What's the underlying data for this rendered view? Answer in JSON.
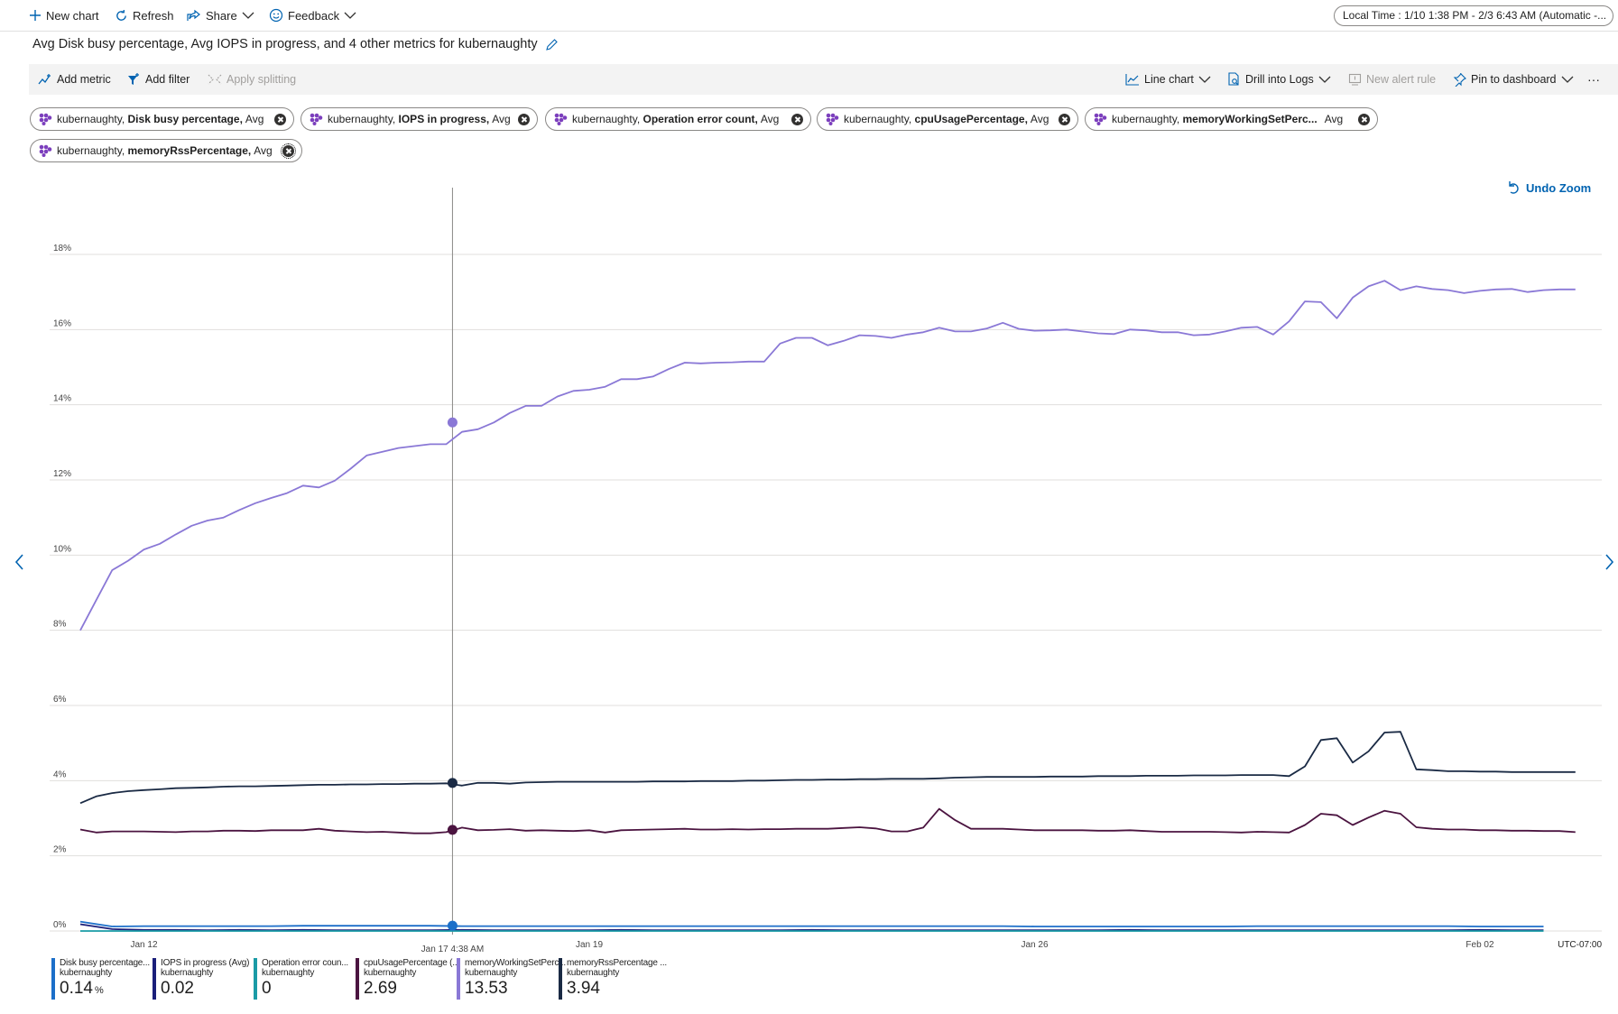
{
  "toolbar": {
    "new_chart": "New chart",
    "refresh": "Refresh",
    "share": "Share",
    "feedback": "Feedback",
    "time_range": "Local Time : 1/10 1:38 PM - 2/3 6:43 AM (Automatic -..."
  },
  "chart_title": "Avg Disk busy percentage, Avg IOPS in progress, and 4 other metrics for kubernaughty",
  "commands": {
    "add_metric": "Add metric",
    "add_filter": "Add filter",
    "apply_splitting": "Apply splitting",
    "line_chart": "Line chart",
    "drill_into_logs": "Drill into Logs",
    "new_alert_rule": "New alert rule",
    "pin_to_dashboard": "Pin to dashboard",
    "more": "···"
  },
  "metric_pills": [
    {
      "resource": "kubernaughty,",
      "metric": "Disk busy percentage,",
      "agg": "Avg"
    },
    {
      "resource": "kubernaughty,",
      "metric": "IOPS in progress,",
      "agg": "Avg"
    },
    {
      "resource": "kubernaughty,",
      "metric": "Operation error count,",
      "agg": "Avg"
    },
    {
      "resource": "kubernaughty,",
      "metric": "cpuUsagePercentage,",
      "agg": "Avg"
    },
    {
      "resource": "kubernaughty,",
      "metric": "memoryWorkingSetPerc...",
      "agg": "Avg"
    },
    {
      "resource": "kubernaughty,",
      "metric": "memoryRssPercentage,",
      "agg": "Avg"
    }
  ],
  "undo_zoom": "Undo Zoom",
  "chart_data": {
    "type": "line",
    "ylim": [
      0,
      18
    ],
    "yticks": [
      0,
      2,
      4,
      6,
      8,
      10,
      12,
      14,
      16,
      18
    ],
    "ytick_labels": [
      "0%",
      "2%",
      "4%",
      "6%",
      "8%",
      "10%",
      "12%",
      "14%",
      "16%",
      "18%"
    ],
    "x_range_days": [
      11,
      34.2
    ],
    "xticks": [
      {
        "day": 12,
        "label": "Jan 12"
      },
      {
        "day": 19,
        "label": "Jan 19"
      },
      {
        "day": 26,
        "label": "Jan 26"
      },
      {
        "day": 33,
        "label": "Feb 02"
      }
    ],
    "timezone_label": "UTC-07:00",
    "cursor": {
      "day": 16.85,
      "label": "Jan 17 4:38 AM"
    },
    "grid": true,
    "series": [
      {
        "name": "memoryWorkingSetPercentage (Avg)",
        "color": "#8a78d6",
        "start_day": 11.0,
        "step_days": 0.25,
        "values": [
          8.0,
          8.8,
          9.6,
          9.85,
          10.15,
          10.3,
          10.55,
          10.78,
          10.92,
          11.0,
          11.2,
          11.38,
          11.52,
          11.65,
          11.85,
          11.8,
          11.98,
          12.3,
          12.65,
          12.75,
          12.85,
          12.9,
          12.95,
          12.95,
          13.28,
          13.35,
          13.53,
          13.78,
          13.97,
          13.97,
          14.22,
          14.37,
          14.4,
          14.48,
          14.68,
          14.68,
          14.75,
          14.95,
          15.12,
          15.1,
          15.12,
          15.13,
          15.15,
          15.15,
          15.63,
          15.78,
          15.78,
          15.58,
          15.7,
          15.85,
          15.83,
          15.78,
          15.87,
          15.93,
          16.05,
          15.95,
          15.95,
          16.03,
          16.18,
          16.02,
          15.97,
          15.98,
          16.0,
          15.95,
          15.9,
          15.88,
          16.0,
          15.98,
          15.93,
          15.93,
          15.85,
          15.87,
          15.95,
          16.05,
          16.07,
          15.87,
          16.22,
          16.75,
          16.73,
          16.3,
          16.85,
          17.15,
          17.3,
          17.05,
          17.15,
          17.08,
          17.05,
          16.97,
          17.03,
          17.07,
          17.08,
          17.0,
          17.05,
          17.07,
          17.07
        ]
      },
      {
        "name": "memoryRssPercentage (Avg)",
        "color": "#1a2a44",
        "start_day": 11.0,
        "step_days": 0.25,
        "values": [
          3.4,
          3.58,
          3.67,
          3.72,
          3.75,
          3.77,
          3.8,
          3.81,
          3.82,
          3.84,
          3.85,
          3.85,
          3.86,
          3.87,
          3.88,
          3.89,
          3.89,
          3.9,
          3.9,
          3.91,
          3.91,
          3.92,
          3.92,
          3.93,
          3.87,
          3.94,
          3.94,
          3.92,
          3.95,
          3.96,
          3.97,
          3.97,
          3.97,
          3.97,
          3.97,
          3.97,
          3.98,
          3.98,
          3.98,
          3.99,
          3.99,
          3.99,
          4.0,
          4.0,
          4.01,
          4.02,
          4.02,
          4.03,
          4.03,
          4.04,
          4.04,
          4.05,
          4.05,
          4.05,
          4.06,
          4.08,
          4.09,
          4.1,
          4.1,
          4.1,
          4.1,
          4.11,
          4.11,
          4.11,
          4.12,
          4.12,
          4.12,
          4.13,
          4.13,
          4.13,
          4.14,
          4.14,
          4.14,
          4.15,
          4.15,
          4.15,
          4.12,
          4.38,
          5.08,
          5.13,
          4.48,
          4.78,
          5.28,
          5.3,
          4.3,
          4.28,
          4.25,
          4.25,
          4.24,
          4.24,
          4.23,
          4.23,
          4.23,
          4.23,
          4.23
        ]
      },
      {
        "name": "cpuUsagePercentage (Avg)",
        "color": "#4b1440",
        "start_day": 11.0,
        "step_days": 0.25,
        "values": [
          2.7,
          2.62,
          2.65,
          2.65,
          2.65,
          2.64,
          2.63,
          2.65,
          2.65,
          2.67,
          2.67,
          2.66,
          2.68,
          2.68,
          2.68,
          2.72,
          2.67,
          2.65,
          2.63,
          2.64,
          2.62,
          2.6,
          2.6,
          2.63,
          2.75,
          2.68,
          2.69,
          2.71,
          2.67,
          2.68,
          2.67,
          2.66,
          2.68,
          2.62,
          2.68,
          2.69,
          2.7,
          2.71,
          2.72,
          2.7,
          2.7,
          2.71,
          2.7,
          2.71,
          2.71,
          2.72,
          2.72,
          2.72,
          2.74,
          2.76,
          2.73,
          2.65,
          2.65,
          2.75,
          3.25,
          2.95,
          2.72,
          2.72,
          2.72,
          2.7,
          2.68,
          2.68,
          2.68,
          2.68,
          2.67,
          2.67,
          2.68,
          2.66,
          2.64,
          2.64,
          2.64,
          2.64,
          2.63,
          2.62,
          2.64,
          2.63,
          2.62,
          2.82,
          3.12,
          3.08,
          2.82,
          3.02,
          3.2,
          3.12,
          2.76,
          2.72,
          2.7,
          2.7,
          2.68,
          2.68,
          2.67,
          2.67,
          2.66,
          2.66,
          2.63
        ]
      },
      {
        "name": "Disk busy percentage (Avg)",
        "color": "#1c6fc9",
        "start_day": 11.0,
        "step_days": 0.5,
        "values": [
          0.25,
          0.12,
          0.13,
          0.13,
          0.13,
          0.13,
          0.13,
          0.14,
          0.14,
          0.14,
          0.14,
          0.14,
          0.13,
          0.13,
          0.13,
          0.13,
          0.13,
          0.13,
          0.13,
          0.13,
          0.13,
          0.13,
          0.13,
          0.13,
          0.13,
          0.13,
          0.13,
          0.13,
          0.13,
          0.13,
          0.12,
          0.12,
          0.12,
          0.12,
          0.12,
          0.12,
          0.12,
          0.13,
          0.13,
          0.13,
          0.13,
          0.13,
          0.13,
          0.13,
          0.12,
          0.12,
          0.12
        ]
      },
      {
        "name": "IOPS in progress (Avg)",
        "color": "#1b1f7a",
        "start_day": 11.0,
        "step_days": 0.5,
        "values": [
          0.18,
          0.05,
          0.03,
          0.03,
          0.02,
          0.03,
          0.02,
          0.03,
          0.02,
          0.02,
          0.02,
          0.02,
          0.03,
          0.02,
          0.02,
          0.02,
          0.02,
          0.03,
          0.02,
          0.02,
          0.02,
          0.02,
          0.02,
          0.03,
          0.02,
          0.02,
          0.02,
          0.02,
          0.02,
          0.02,
          0.02,
          0.02,
          0.02,
          0.03,
          0.02,
          0.02,
          0.02,
          0.02,
          0.02,
          0.02,
          0.02,
          0.02,
          0.02,
          0.02,
          0.03,
          0.02,
          0.02
        ]
      },
      {
        "name": "Operation error count (Avg)",
        "color": "#1a9ba6",
        "start_day": 11.0,
        "step_days": 0.5,
        "values": [
          0.0,
          0.0,
          0.0,
          0.0,
          0.0,
          0.0,
          0.0,
          0.0,
          0.0,
          0.0,
          0.0,
          0.0,
          0.0,
          0.0,
          0.0,
          0.0,
          0.0,
          0.0,
          0.0,
          0.0,
          0.0,
          0.0,
          0.0,
          0.0,
          0.0,
          0.0,
          0.0,
          0.0,
          0.0,
          0.0,
          0.0,
          0.0,
          0.0,
          0.0,
          0.0,
          0.0,
          0.0,
          0.0,
          0.0,
          0.0,
          0.0,
          0.0,
          0.0,
          0.0,
          0.0,
          0.0,
          0.0
        ]
      }
    ],
    "cursor_markers": [
      {
        "series": "memoryWorkingSetPercentage (Avg)",
        "value": 13.53
      },
      {
        "series": "memoryRssPercentage (Avg)",
        "value": 3.94
      },
      {
        "series": "cpuUsagePercentage (Avg)",
        "value": 2.69
      },
      {
        "series": "Disk busy percentage (Avg)",
        "value": 0.14
      }
    ]
  },
  "legend": [
    {
      "name": "Disk busy percentage...",
      "resource": "kubernaughty",
      "value": "0.14",
      "unit": "%",
      "color": "#1c6fc9"
    },
    {
      "name": "IOPS in progress (Avg)",
      "resource": "kubernaughty",
      "value": "0.02",
      "unit": "",
      "color": "#1b1f7a"
    },
    {
      "name": "Operation error coun...",
      "resource": "kubernaughty",
      "value": "0",
      "unit": "",
      "color": "#1a9ba6"
    },
    {
      "name": "cpuUsagePercentage (...",
      "resource": "kubernaughty",
      "value": "2.69",
      "unit": "",
      "color": "#4b1440"
    },
    {
      "name": "memoryWorkingSetPerc...",
      "resource": "kubernaughty",
      "value": "13.53",
      "unit": "",
      "color": "#8a78d6"
    },
    {
      "name": "memoryRssPercentage ...",
      "resource": "kubernaughty",
      "value": "3.94",
      "unit": "",
      "color": "#1a2a44"
    }
  ]
}
